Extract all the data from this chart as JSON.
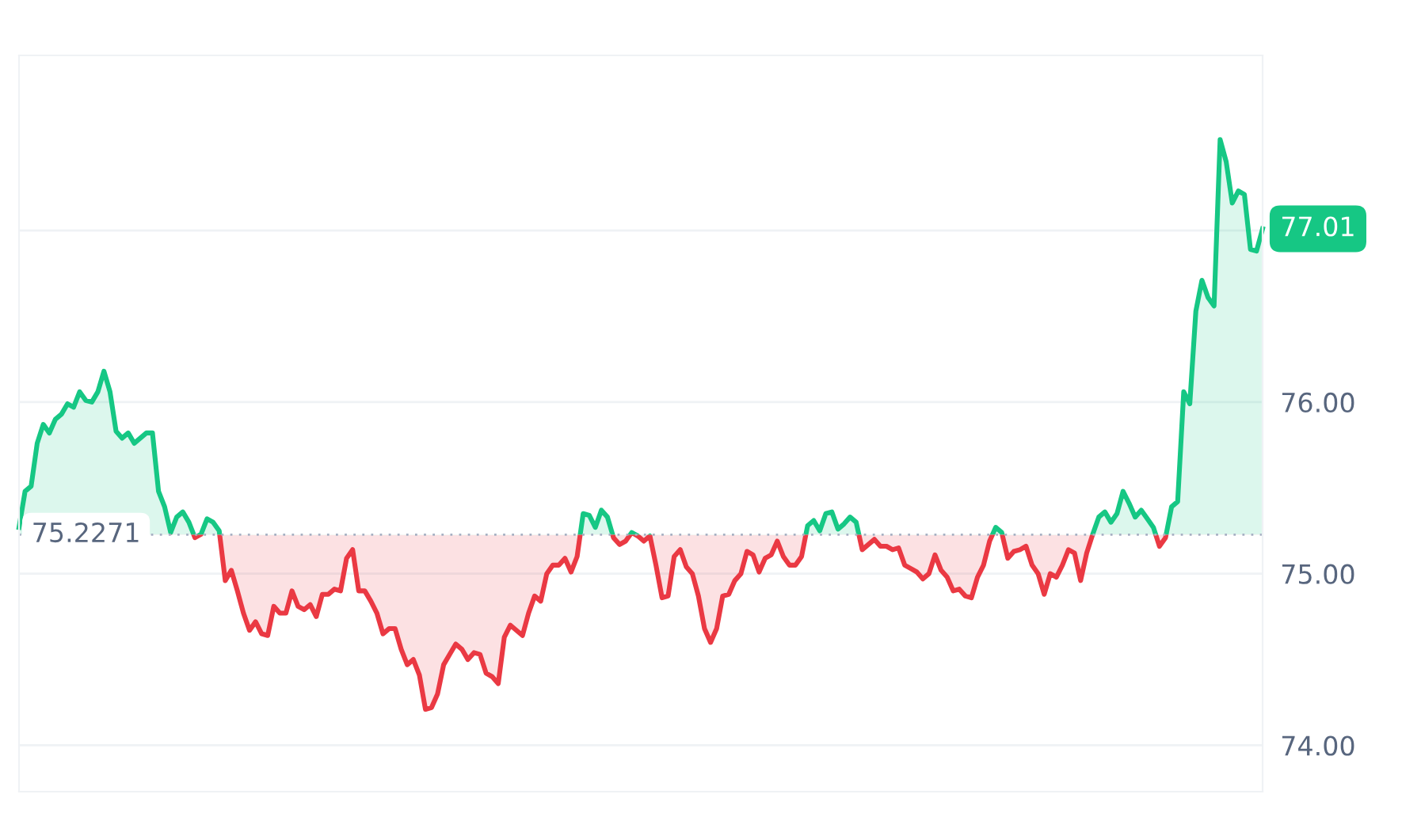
{
  "chart_data": {
    "type": "area",
    "categories": [
      null,
      null,
      null,
      null,
      null,
      null,
      null,
      null,
      null,
      null,
      null,
      null,
      null,
      null,
      null,
      null,
      null,
      null,
      null,
      null,
      null,
      null,
      null,
      null,
      null,
      null,
      null,
      null,
      null,
      null,
      null,
      null,
      null,
      null,
      null,
      null,
      null,
      null,
      null,
      null,
      null,
      null,
      null,
      null,
      null,
      null,
      null,
      null,
      null,
      null,
      null,
      null,
      null,
      null,
      null,
      null,
      null,
      null,
      null,
      null,
      null,
      null,
      null,
      null,
      null,
      null,
      null,
      null,
      null,
      null,
      null,
      null,
      null,
      null,
      null,
      null,
      null,
      null,
      null,
      null,
      null,
      null,
      null,
      null,
      null,
      null,
      null,
      null,
      null,
      null,
      null,
      null,
      null,
      null,
      null,
      null,
      null,
      null,
      null,
      null,
      null,
      null,
      null,
      null,
      null,
      null,
      null,
      null,
      null,
      null,
      null,
      null,
      null,
      null,
      null,
      null,
      null,
      null,
      null,
      null,
      null,
      null,
      null,
      null,
      null,
      null,
      null,
      null,
      null,
      null,
      null,
      null,
      null,
      null,
      null,
      null,
      null,
      null,
      null,
      null,
      null,
      null,
      null,
      null,
      null,
      null,
      null,
      null,
      null,
      null,
      null,
      null,
      null,
      null,
      null,
      null,
      null,
      null,
      null,
      null,
      null,
      null,
      null,
      null,
      null,
      null,
      null,
      null,
      null,
      null,
      null,
      null,
      null,
      null,
      null,
      null,
      null,
      null,
      null,
      null,
      null,
      null,
      null,
      null,
      null,
      null,
      null,
      null,
      null,
      null,
      null,
      null,
      null,
      null,
      null,
      null,
      null,
      null,
      null,
      null,
      null,
      null,
      null,
      null,
      null,
      null
    ],
    "values": [
      75.27,
      75.48,
      75.51,
      75.76,
      75.87,
      75.82,
      75.9,
      75.93,
      75.99,
      75.97,
      76.06,
      76.01,
      76.0,
      76.06,
      76.18,
      76.06,
      75.83,
      75.79,
      75.82,
      75.76,
      75.79,
      75.82,
      75.82,
      75.48,
      75.39,
      75.24,
      75.33,
      75.36,
      75.3,
      75.21,
      75.23,
      75.32,
      75.3,
      75.25,
      74.96,
      75.02,
      74.9,
      74.77,
      74.67,
      74.72,
      74.65,
      74.64,
      74.81,
      74.77,
      74.77,
      74.9,
      74.81,
      74.79,
      74.82,
      74.75,
      74.88,
      74.88,
      74.91,
      74.9,
      75.09,
      75.14,
      74.9,
      74.9,
      74.84,
      74.77,
      74.65,
      74.68,
      74.68,
      74.56,
      74.47,
      74.5,
      74.41,
      74.21,
      74.22,
      74.3,
      74.47,
      74.53,
      74.59,
      74.56,
      74.5,
      74.54,
      74.53,
      74.42,
      74.4,
      74.36,
      74.63,
      74.7,
      74.67,
      74.64,
      74.77,
      74.87,
      74.84,
      75.0,
      75.05,
      75.05,
      75.09,
      75.01,
      75.1,
      75.35,
      75.34,
      75.27,
      75.37,
      75.33,
      75.21,
      75.17,
      75.19,
      75.24,
      75.22,
      75.19,
      75.22,
      75.05,
      74.86,
      74.87,
      75.1,
      75.14,
      75.04,
      75.0,
      74.87,
      74.68,
      74.6,
      74.68,
      74.87,
      74.88,
      74.96,
      75.0,
      75.13,
      75.11,
      75.01,
      75.09,
      75.11,
      75.19,
      75.1,
      75.05,
      75.05,
      75.1,
      75.28,
      75.31,
      75.25,
      75.35,
      75.36,
      75.26,
      75.29,
      75.33,
      75.3,
      75.14,
      75.17,
      75.2,
      75.16,
      75.16,
      75.14,
      75.15,
      75.05,
      75.03,
      75.01,
      74.97,
      75.0,
      75.11,
      75.02,
      74.98,
      74.9,
      74.91,
      74.87,
      74.86,
      74.98,
      75.05,
      75.19,
      75.27,
      75.24,
      75.09,
      75.13,
      75.14,
      75.16,
      75.05,
      75.0,
      74.88,
      75.0,
      74.98,
      75.05,
      75.14,
      75.12,
      74.96,
      75.12,
      75.23,
      75.33,
      75.36,
      75.3,
      75.35,
      75.48,
      75.41,
      75.33,
      75.37,
      75.32,
      75.27,
      75.16,
      75.21,
      75.39,
      75.42,
      76.06,
      75.99,
      76.53,
      76.71,
      76.61,
      76.56,
      77.53,
      77.4,
      77.16,
      77.23,
      77.21,
      76.89,
      76.88,
      77.01
    ],
    "colors": [
      "#16c784",
      "#16c784",
      "#16c784",
      "#16c784",
      "#16c784",
      "#16c784",
      "#16c784",
      "#16c784",
      "#16c784",
      "#16c784",
      "#16c784",
      "#16c784",
      "#16c784",
      "#16c784",
      "#16c784",
      "#16c784",
      "#16c784",
      "#16c784",
      "#16c784",
      "#16c784",
      "#16c784",
      "#16c784",
      "#16c784",
      "#16c784",
      "#16c784",
      "#16c784",
      "#16c784",
      "#16c784",
      "#16c784",
      "#ea3943",
      "#16c784",
      "#16c784",
      "#16c784",
      "#16c784",
      "#ea3943",
      "#ea3943",
      "#ea3943",
      "#ea3943",
      "#ea3943",
      "#ea3943",
      "#ea3943",
      "#ea3943",
      "#ea3943",
      "#ea3943",
      "#ea3943",
      "#ea3943",
      "#ea3943",
      "#ea3943",
      "#ea3943",
      "#ea3943",
      "#ea3943",
      "#ea3943",
      "#ea3943",
      "#ea3943",
      "#ea3943",
      "#ea3943",
      "#ea3943",
      "#ea3943",
      "#ea3943",
      "#ea3943",
      "#ea3943",
      "#ea3943",
      "#ea3943",
      "#ea3943",
      "#ea3943",
      "#ea3943",
      "#ea3943",
      "#ea3943",
      "#ea3943",
      "#ea3943",
      "#ea3943",
      "#ea3943",
      "#ea3943",
      "#ea3943",
      "#ea3943",
      "#ea3943",
      "#ea3943",
      "#ea3943",
      "#ea3943",
      "#ea3943",
      "#ea3943",
      "#ea3943",
      "#ea3943",
      "#ea3943",
      "#ea3943",
      "#ea3943",
      "#ea3943",
      "#ea3943",
      "#ea3943",
      "#ea3943",
      "#ea3943",
      "#ea3943",
      "#ea3943",
      "#16c784",
      "#16c784",
      "#16c784",
      "#16c784",
      "#16c784",
      "#ea3943",
      "#ea3943",
      "#ea3943",
      "#16c784",
      "#ea3943",
      "#ea3943",
      "#ea3943",
      "#ea3943",
      "#ea3943",
      "#ea3943",
      "#ea3943",
      "#ea3943",
      "#ea3943",
      "#ea3943",
      "#ea3943",
      "#ea3943",
      "#ea3943",
      "#ea3943",
      "#ea3943",
      "#ea3943",
      "#ea3943",
      "#ea3943",
      "#ea3943",
      "#ea3943",
      "#ea3943",
      "#ea3943",
      "#ea3943",
      "#ea3943",
      "#ea3943",
      "#ea3943",
      "#ea3943",
      "#ea3943",
      "#16c784",
      "#16c784",
      "#16c784",
      "#16c784",
      "#16c784",
      "#16c784",
      "#16c784",
      "#16c784",
      "#16c784",
      "#ea3943",
      "#ea3943",
      "#ea3943",
      "#ea3943",
      "#ea3943",
      "#ea3943",
      "#ea3943",
      "#ea3943",
      "#ea3943",
      "#ea3943",
      "#ea3943",
      "#ea3943",
      "#ea3943",
      "#ea3943",
      "#ea3943",
      "#ea3943",
      "#ea3943",
      "#ea3943",
      "#ea3943",
      "#ea3943",
      "#ea3943",
      "#ea3943",
      "#16c784",
      "#16c784",
      "#ea3943",
      "#ea3943",
      "#ea3943",
      "#ea3943",
      "#ea3943",
      "#ea3943",
      "#ea3943",
      "#ea3943",
      "#ea3943",
      "#ea3943",
      "#ea3943",
      "#ea3943",
      "#ea3943",
      "#ea3943",
      "#16c784",
      "#16c784",
      "#16c784",
      "#16c784",
      "#16c784",
      "#16c784",
      "#16c784",
      "#16c784",
      "#16c784",
      "#16c784",
      "#16c784",
      "#ea3943",
      "#ea3943",
      "#16c784",
      "#16c784",
      "#16c784",
      "#16c784",
      "#16c784",
      "#16c784",
      "#16c784",
      "#16c784",
      "#16c784",
      "#16c784",
      "#16c784",
      "#16c784",
      "#16c784",
      "#16c784",
      "#16c784",
      "#16c784"
    ],
    "ylim": [
      73.73,
      78.02
    ],
    "yticks": [
      {
        "value": 74,
        "label": "74.00"
      },
      {
        "value": 75,
        "label": "75.00"
      },
      {
        "value": 76,
        "label": "76.00"
      },
      {
        "value": 77,
        "label": null
      }
    ],
    "tick_labels": "y",
    "grid": "y",
    "ref_lines": [
      {
        "axis": "y",
        "value": 75.2271,
        "label": "75.2271",
        "color": "#a6b0c3",
        "line_style": "dotted"
      }
    ],
    "annotations": [
      "77.01"
    ]
  }
}
